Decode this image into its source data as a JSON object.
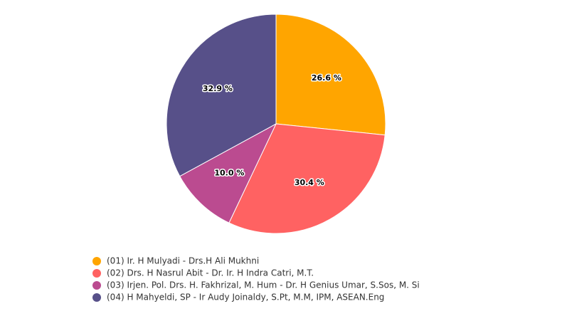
{
  "chart_data": {
    "type": "pie",
    "categories": [
      "(01) Ir. H Mulyadi - Drs.H Ali Mukhni",
      "(02) Drs. H Nasrul Abit - Dr. Ir. H Indra Catri, M.T.",
      "(03) Irjen. Pol. Drs. H. Fakhrizal, M. Hum - Dr. H Genius Umar, S.Sos, M. Si",
      "(04) H Mahyeldi, SP - Ir Audy Joinaldy, S.Pt, M.M, IPM, ASEAN.Eng"
    ],
    "values": [
      26.6,
      30.4,
      10.0,
      32.9
    ],
    "labels": [
      "26.6 %",
      "30.4 %",
      "10.0 %",
      "32.9 %"
    ],
    "colors": [
      "#ffa500",
      "#ff6262",
      "#bb4b90",
      "#575089"
    ],
    "legend_position": "bottom-left",
    "start_angle_deg": 0,
    "direction": "clockwise"
  }
}
